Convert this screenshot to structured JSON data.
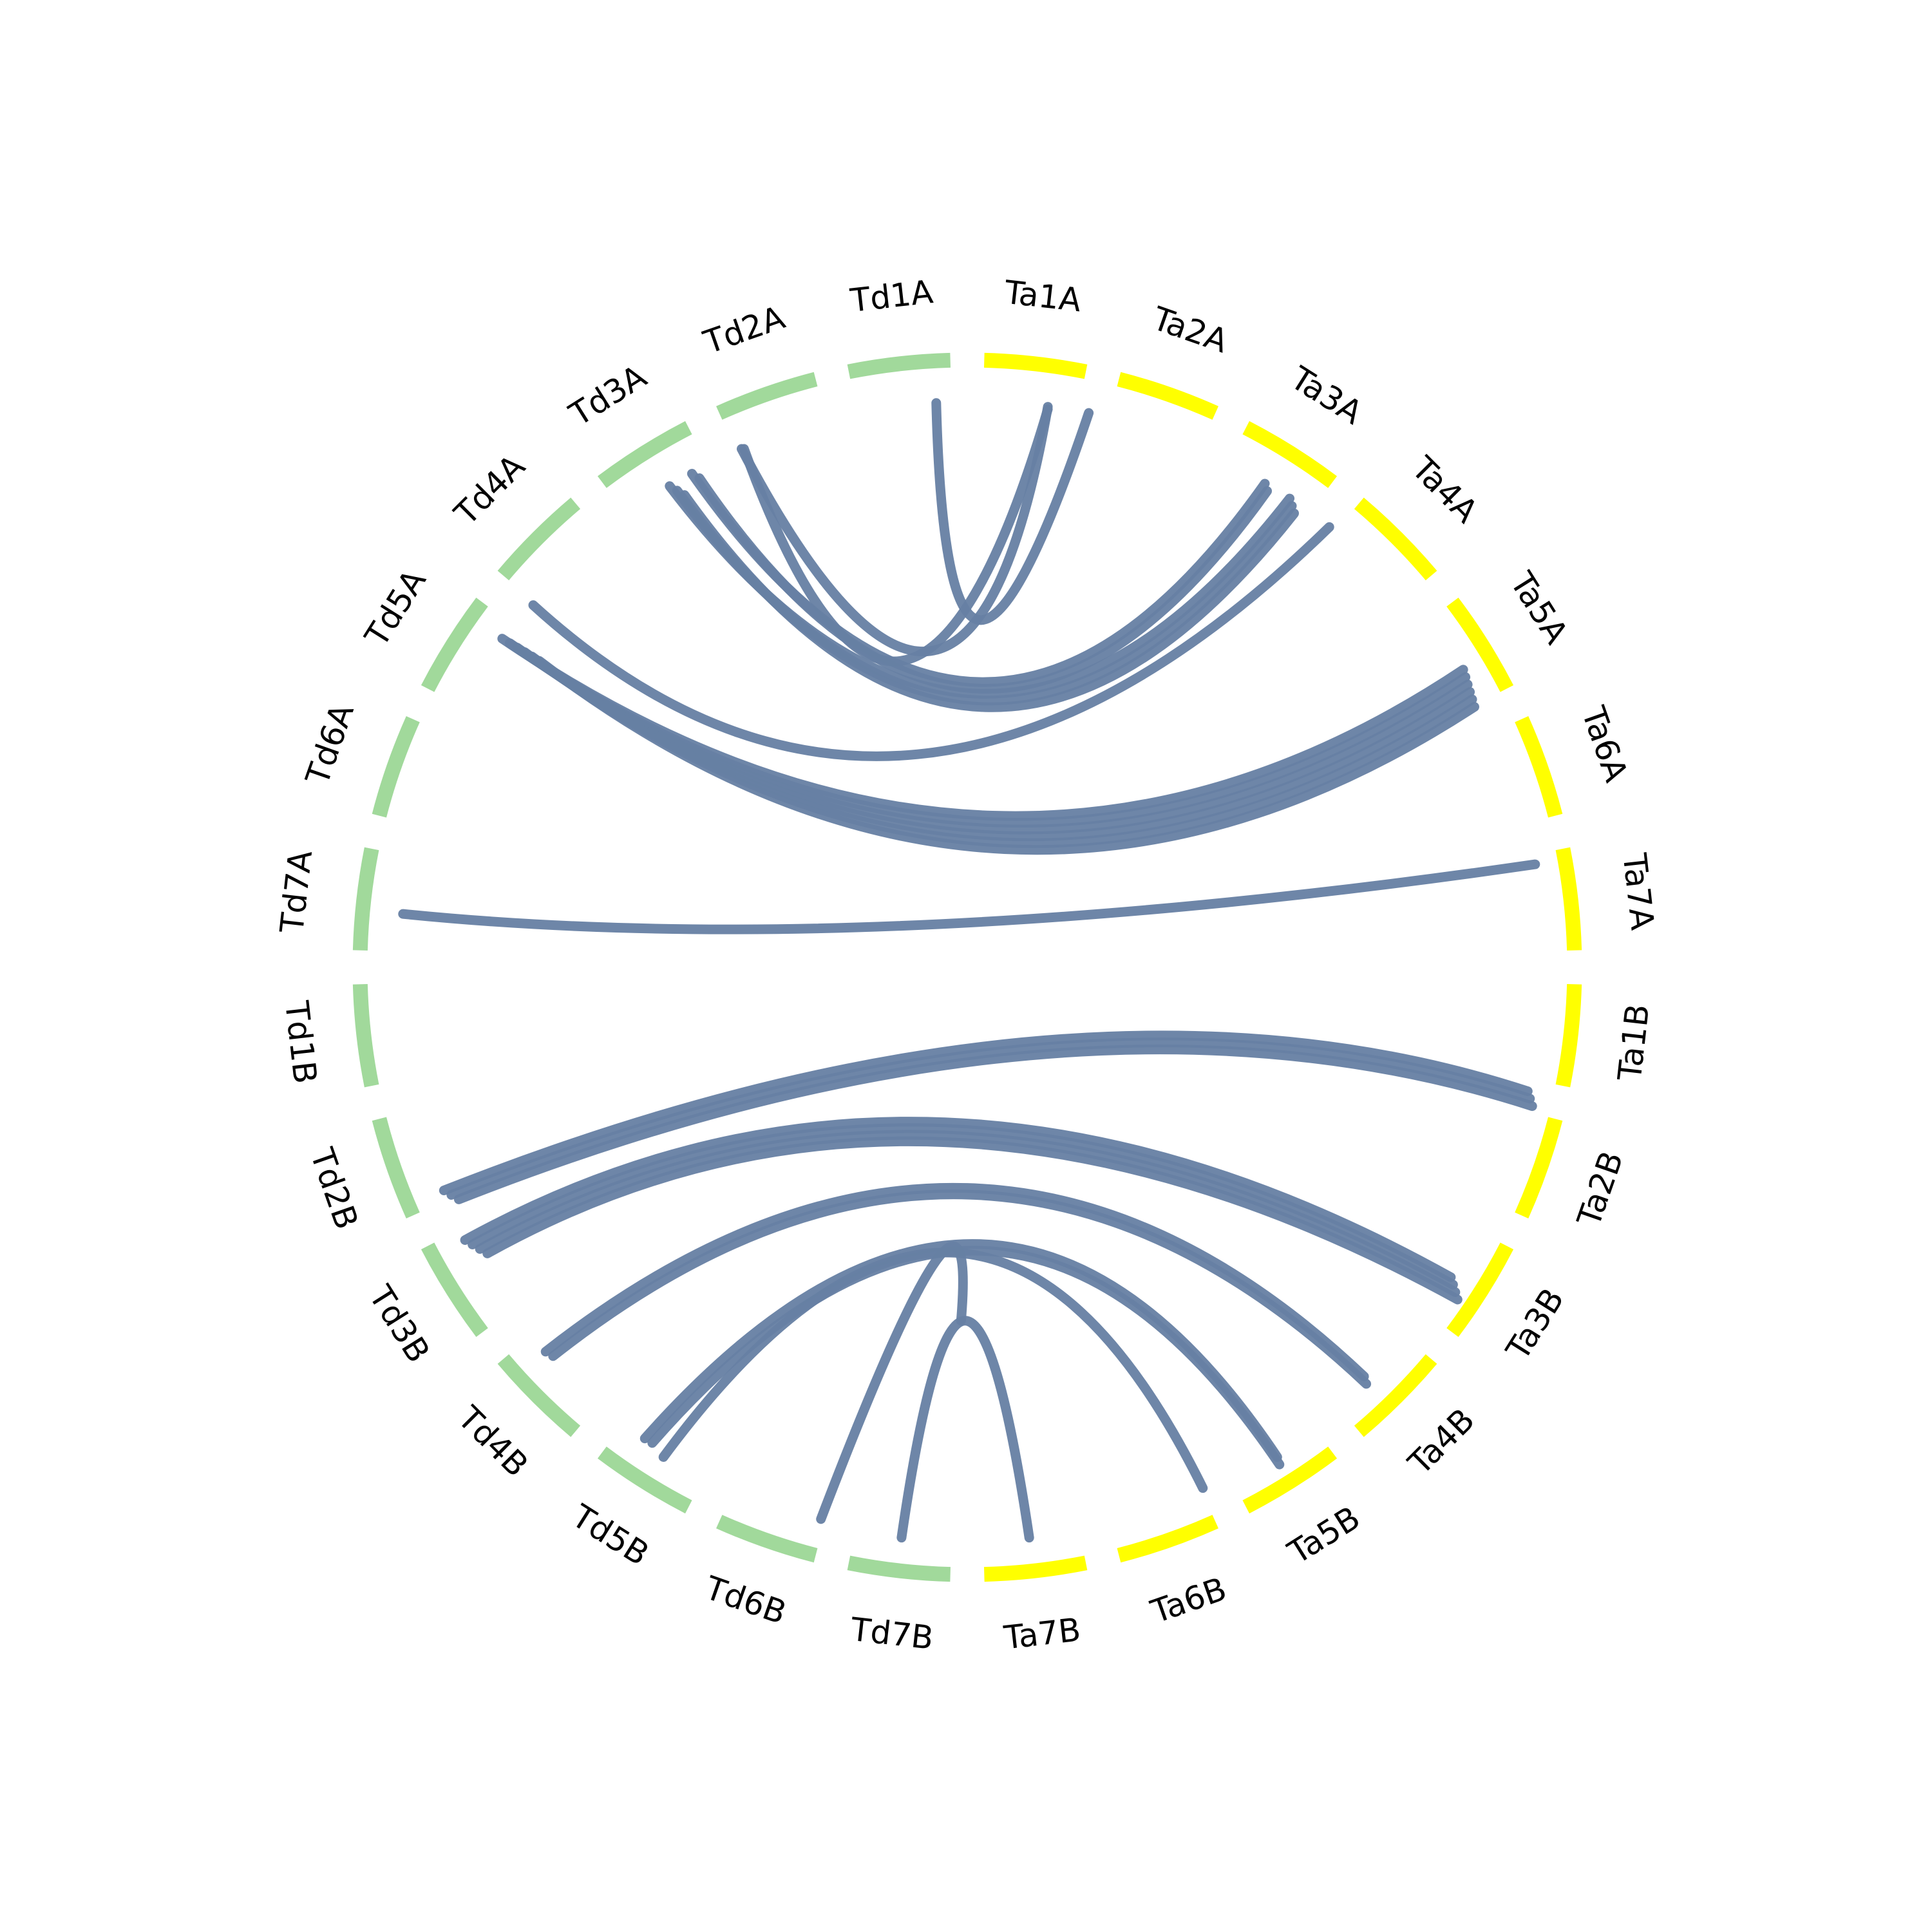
{
  "segments": [
    {
      "label": "Ta1A",
      "color": "#ffff00"
    },
    {
      "label": "Ta2A",
      "color": "#ffff00"
    },
    {
      "label": "Ta3A",
      "color": "#ffff00"
    },
    {
      "label": "Ta4A",
      "color": "#ffff00"
    },
    {
      "label": "Ta5A",
      "color": "#ffff00"
    },
    {
      "label": "Ta6A",
      "color": "#ffff00"
    },
    {
      "label": "Ta7A",
      "color": "#ffff00"
    },
    {
      "label": "Ta1B",
      "color": "#ffff00"
    },
    {
      "label": "Ta2B",
      "color": "#ffff00"
    },
    {
      "label": "Ta3B",
      "color": "#ffff00"
    },
    {
      "label": "Ta4B",
      "color": "#ffff00"
    },
    {
      "label": "Ta5B",
      "color": "#ffff00"
    },
    {
      "label": "Ta6B",
      "color": "#ffff00"
    },
    {
      "label": "Ta7B",
      "color": "#ffff00"
    },
    {
      "label": "Td7B",
      "color": "#a1d99b"
    },
    {
      "label": "Td6B",
      "color": "#a1d99b"
    },
    {
      "label": "Td5B",
      "color": "#a1d99b"
    },
    {
      "label": "Td4B",
      "color": "#a1d99b"
    },
    {
      "label": "Td3B",
      "color": "#a1d99b"
    },
    {
      "label": "Td2B",
      "color": "#a1d99b"
    },
    {
      "label": "Td1B",
      "color": "#a1d99b"
    },
    {
      "label": "Td7A",
      "color": "#a1d99b"
    },
    {
      "label": "Td6A",
      "color": "#a1d99b"
    },
    {
      "label": "Td5A",
      "color": "#a1d99b"
    },
    {
      "label": "Td4A",
      "color": "#a1d99b"
    },
    {
      "label": "Td3A",
      "color": "#a1d99b"
    },
    {
      "label": "Td2A",
      "color": "#a1d99b"
    },
    {
      "label": "Td1A",
      "color": "#a1d99b"
    }
  ]
}
